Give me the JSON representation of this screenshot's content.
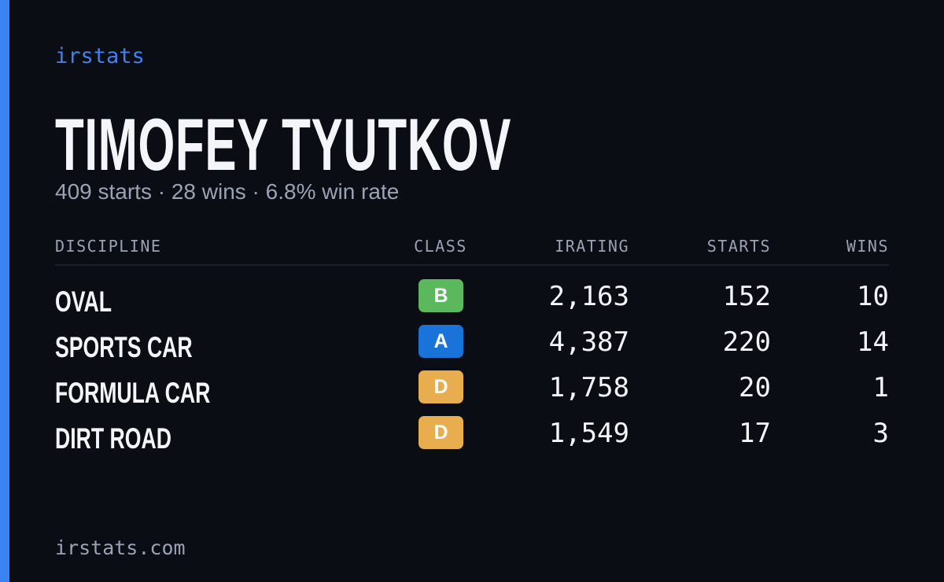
{
  "brand": "irstats",
  "name": "TIMOFEY TYUTKOV",
  "summary": "409 starts · 28 wins · 6.8% win rate",
  "table": {
    "headers": [
      "DISCIPLINE",
      "CLASS",
      "IRATING",
      "STARTS",
      "WINS"
    ],
    "rows": [
      {
        "discipline": "OVAL",
        "class": "B",
        "class_color": "#5cb85c",
        "irating": "2,163",
        "starts": "152",
        "wins": "10"
      },
      {
        "discipline": "SPORTS CAR",
        "class": "A",
        "class_color": "#1a73d9",
        "irating": "4,387",
        "starts": "220",
        "wins": "14"
      },
      {
        "discipline": "FORMULA CAR",
        "class": "D",
        "class_color": "#e8ad4f",
        "irating": "1,758",
        "starts": "20",
        "wins": "1"
      },
      {
        "discipline": "DIRT ROAD",
        "class": "D",
        "class_color": "#e8ad4f",
        "irating": "1,549",
        "starts": "17",
        "wins": "3"
      }
    ]
  },
  "footer": "irstats.com"
}
